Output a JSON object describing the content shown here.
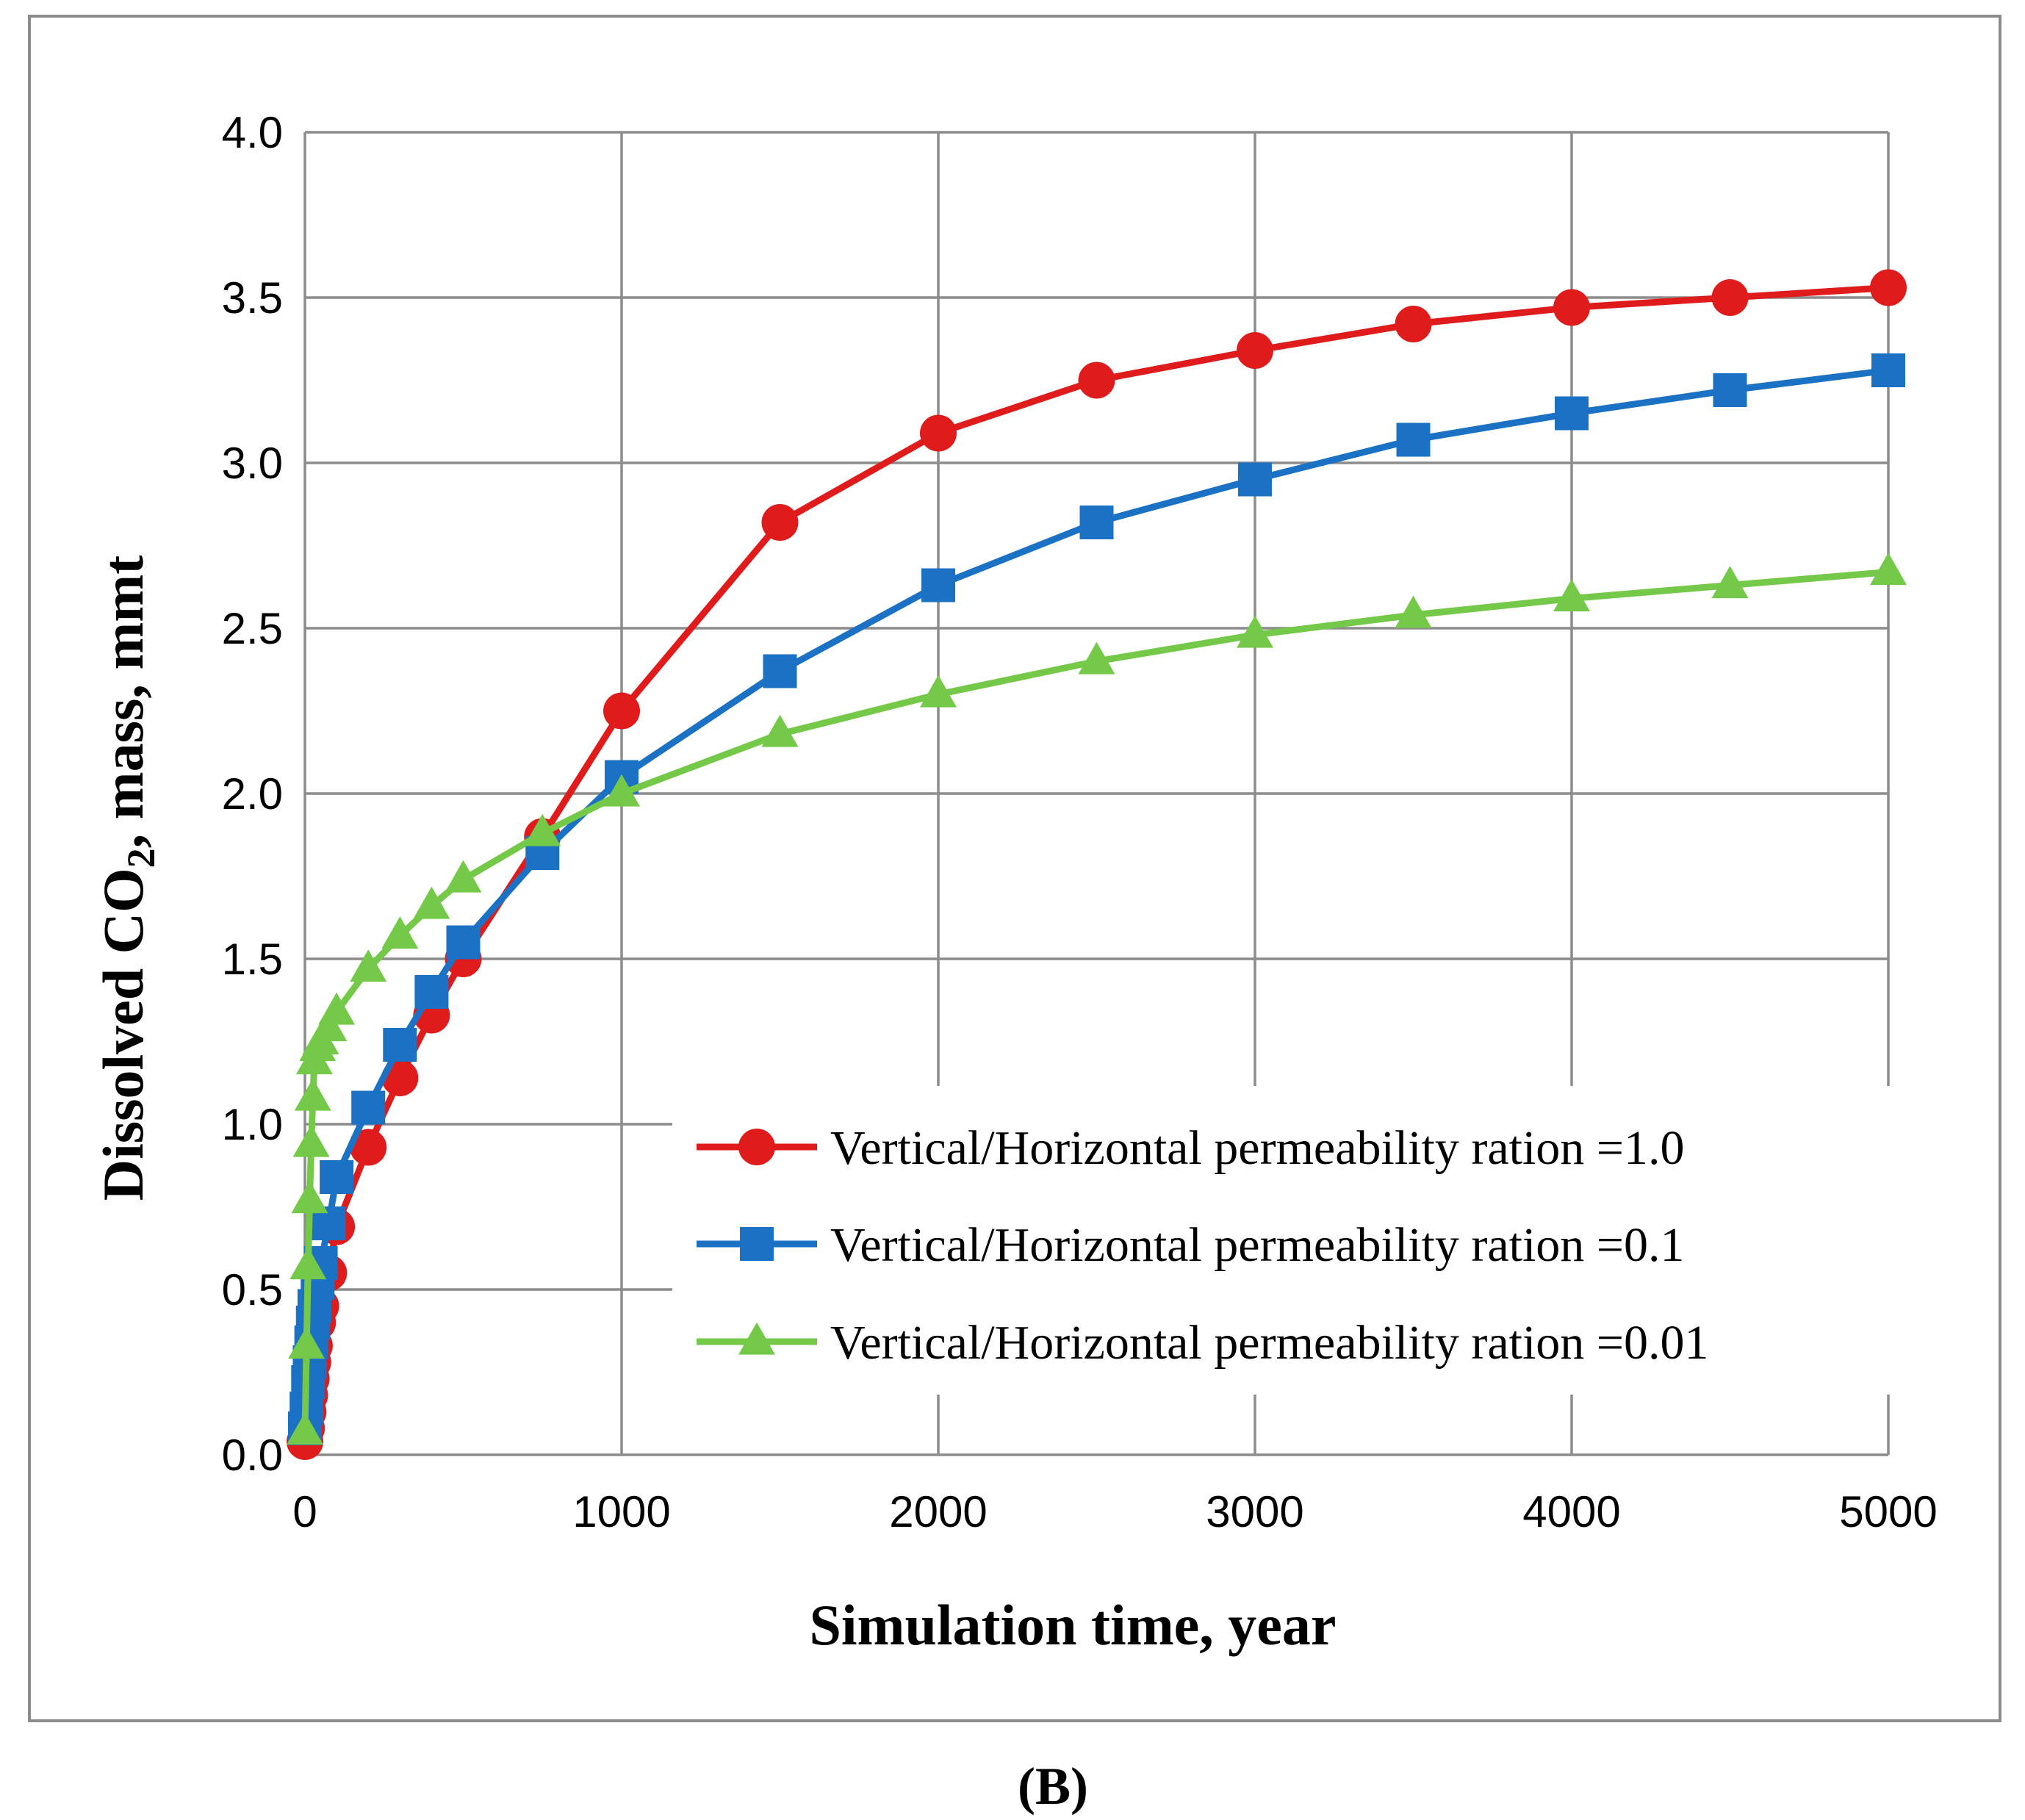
{
  "chart_data": {
    "type": "line",
    "title": "",
    "xlabel": "Simulation time, year",
    "ylabel_prefix": "Dissolved CO",
    "ylabel_subscript": "2",
    "ylabel_suffix": ", mass, mmt",
    "xlim": [
      0,
      5000
    ],
    "ylim": [
      0,
      4
    ],
    "x_ticks": [
      0,
      1000,
      2000,
      3000,
      4000,
      5000
    ],
    "x_tick_labels": [
      "0",
      "1000",
      "2000",
      "3000",
      "4000",
      "5000"
    ],
    "y_ticks": [
      0,
      0.5,
      1,
      1.5,
      2,
      2.5,
      3,
      3.5,
      4
    ],
    "y_tick_labels": [
      "0.0",
      "0.5",
      "1.0",
      "1.5",
      "2.0",
      "2.5",
      "3.0",
      "3.5",
      "4.0"
    ],
    "grid": true,
    "legend_position": "lower-right",
    "panel_label": "(B)",
    "series": [
      {
        "name": "Vertical/Horizontal permeability ration =1.0",
        "color": "#e01b1b",
        "marker": "circle",
        "x": [
          0,
          5,
          10,
          15,
          20,
          25,
          30,
          40,
          50,
          75,
          100,
          200,
          300,
          400,
          500,
          750,
          1000,
          1500,
          2000,
          2500,
          3000,
          3500,
          4000,
          4500,
          5000
        ],
        "y": [
          0.04,
          0.08,
          0.13,
          0.18,
          0.23,
          0.28,
          0.33,
          0.4,
          0.45,
          0.55,
          0.69,
          0.93,
          1.14,
          1.33,
          1.5,
          1.87,
          2.25,
          2.82,
          3.09,
          3.25,
          3.34,
          3.42,
          3.47,
          3.5,
          3.53
        ]
      },
      {
        "name": "Vertical/Horizontal permeability ration =0.1",
        "color": "#1b72c4",
        "marker": "square",
        "x": [
          0,
          5,
          10,
          15,
          20,
          25,
          30,
          40,
          50,
          75,
          100,
          200,
          300,
          400,
          500,
          750,
          1000,
          1500,
          2000,
          2500,
          3000,
          3500,
          4000,
          4500,
          5000
        ],
        "y": [
          0.08,
          0.14,
          0.22,
          0.28,
          0.34,
          0.4,
          0.45,
          0.52,
          0.58,
          0.7,
          0.84,
          1.05,
          1.24,
          1.4,
          1.55,
          1.82,
          2.05,
          2.37,
          2.63,
          2.82,
          2.95,
          3.07,
          3.15,
          3.22,
          3.28
        ]
      },
      {
        "name": "Vertical/Horizontal permeability ration =0.01",
        "color": "#74c948",
        "marker": "triangle",
        "x": [
          0,
          5,
          10,
          15,
          20,
          25,
          30,
          40,
          50,
          75,
          100,
          200,
          300,
          400,
          500,
          750,
          1000,
          1500,
          2000,
          2500,
          3000,
          3500,
          4000,
          4500,
          5000
        ],
        "y": [
          0.07,
          0.33,
          0.57,
          0.77,
          0.94,
          1.08,
          1.19,
          1.23,
          1.25,
          1.29,
          1.34,
          1.47,
          1.57,
          1.66,
          1.74,
          1.88,
          2.0,
          2.18,
          2.3,
          2.4,
          2.48,
          2.54,
          2.59,
          2.63,
          2.67
        ]
      }
    ]
  }
}
